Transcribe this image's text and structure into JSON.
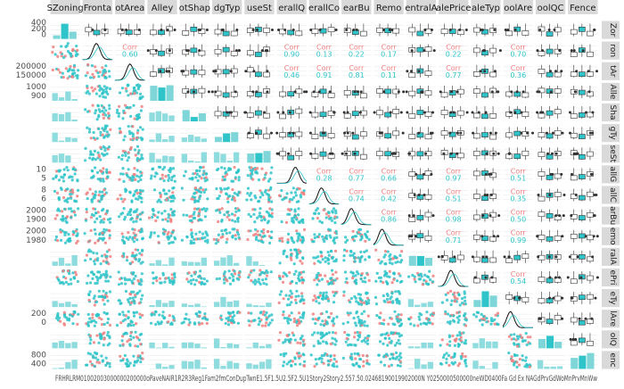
{
  "chart_data": {
    "type": "scatter",
    "title": "",
    "variables": [
      {
        "strip": "SZoning",
        "side": "Zor"
      },
      {
        "strip": "Fronta",
        "side": "ron"
      },
      {
        "strip": "otArea",
        "side": "tAr"
      },
      {
        "strip": "Alley",
        "side": "Alle"
      },
      {
        "strip": "otShap",
        "side": "Sha"
      },
      {
        "strip": "dgTyp",
        "side": "gTy"
      },
      {
        "strip": "useSt",
        "side": "seSt"
      },
      {
        "strip": "erallQ",
        "side": "allG"
      },
      {
        "strip": "erallCo",
        "side": "allC"
      },
      {
        "strip": "earBu",
        "side": "arBu"
      },
      {
        "strip": "Remo",
        "side": "emo"
      },
      {
        "strip": "entralA",
        "side": "ralA"
      },
      {
        "strip": "alePrice",
        "side": "ePri"
      },
      {
        "strip": "aleTyp",
        "side": "eTy"
      },
      {
        "strip": "oolAre",
        "side": "lAre"
      },
      {
        "strip": "oolQC",
        "side": "olQ"
      },
      {
        "strip": "Fence",
        "side": "enc"
      }
    ],
    "left_ticks": [
      {
        "row": 0,
        "labels": [
          "400",
          "200",
          "0"
        ]
      },
      {
        "row": 2,
        "labels": [
          "200000",
          "150000"
        ]
      },
      {
        "row": 3,
        "labels": [
          "1000",
          "900"
        ]
      },
      {
        "row": 7,
        "labels": [
          "10",
          "5"
        ]
      },
      {
        "row": 8,
        "labels": [
          "8",
          "6"
        ]
      },
      {
        "row": 9,
        "labels": [
          "2000",
          "1900"
        ]
      },
      {
        "row": 10,
        "labels": [
          "2000",
          "1980"
        ]
      },
      {
        "row": 14,
        "labels": [
          "200",
          "0"
        ]
      },
      {
        "row": 16,
        "labels": [
          "800",
          "400"
        ]
      }
    ],
    "bottom_ticks": "FRHRLRM01002003000000200000oPaveNAIR1R2R3Reg1Fam2fmConDupTwnE1.5F1.5U2.5F2.5U1Story2Story2.557.50.02468190019902000N Y0250000500000neWD0400Fa Gd Ex NAGdPrvGdWoMnPrvMnWw"
  }
}
